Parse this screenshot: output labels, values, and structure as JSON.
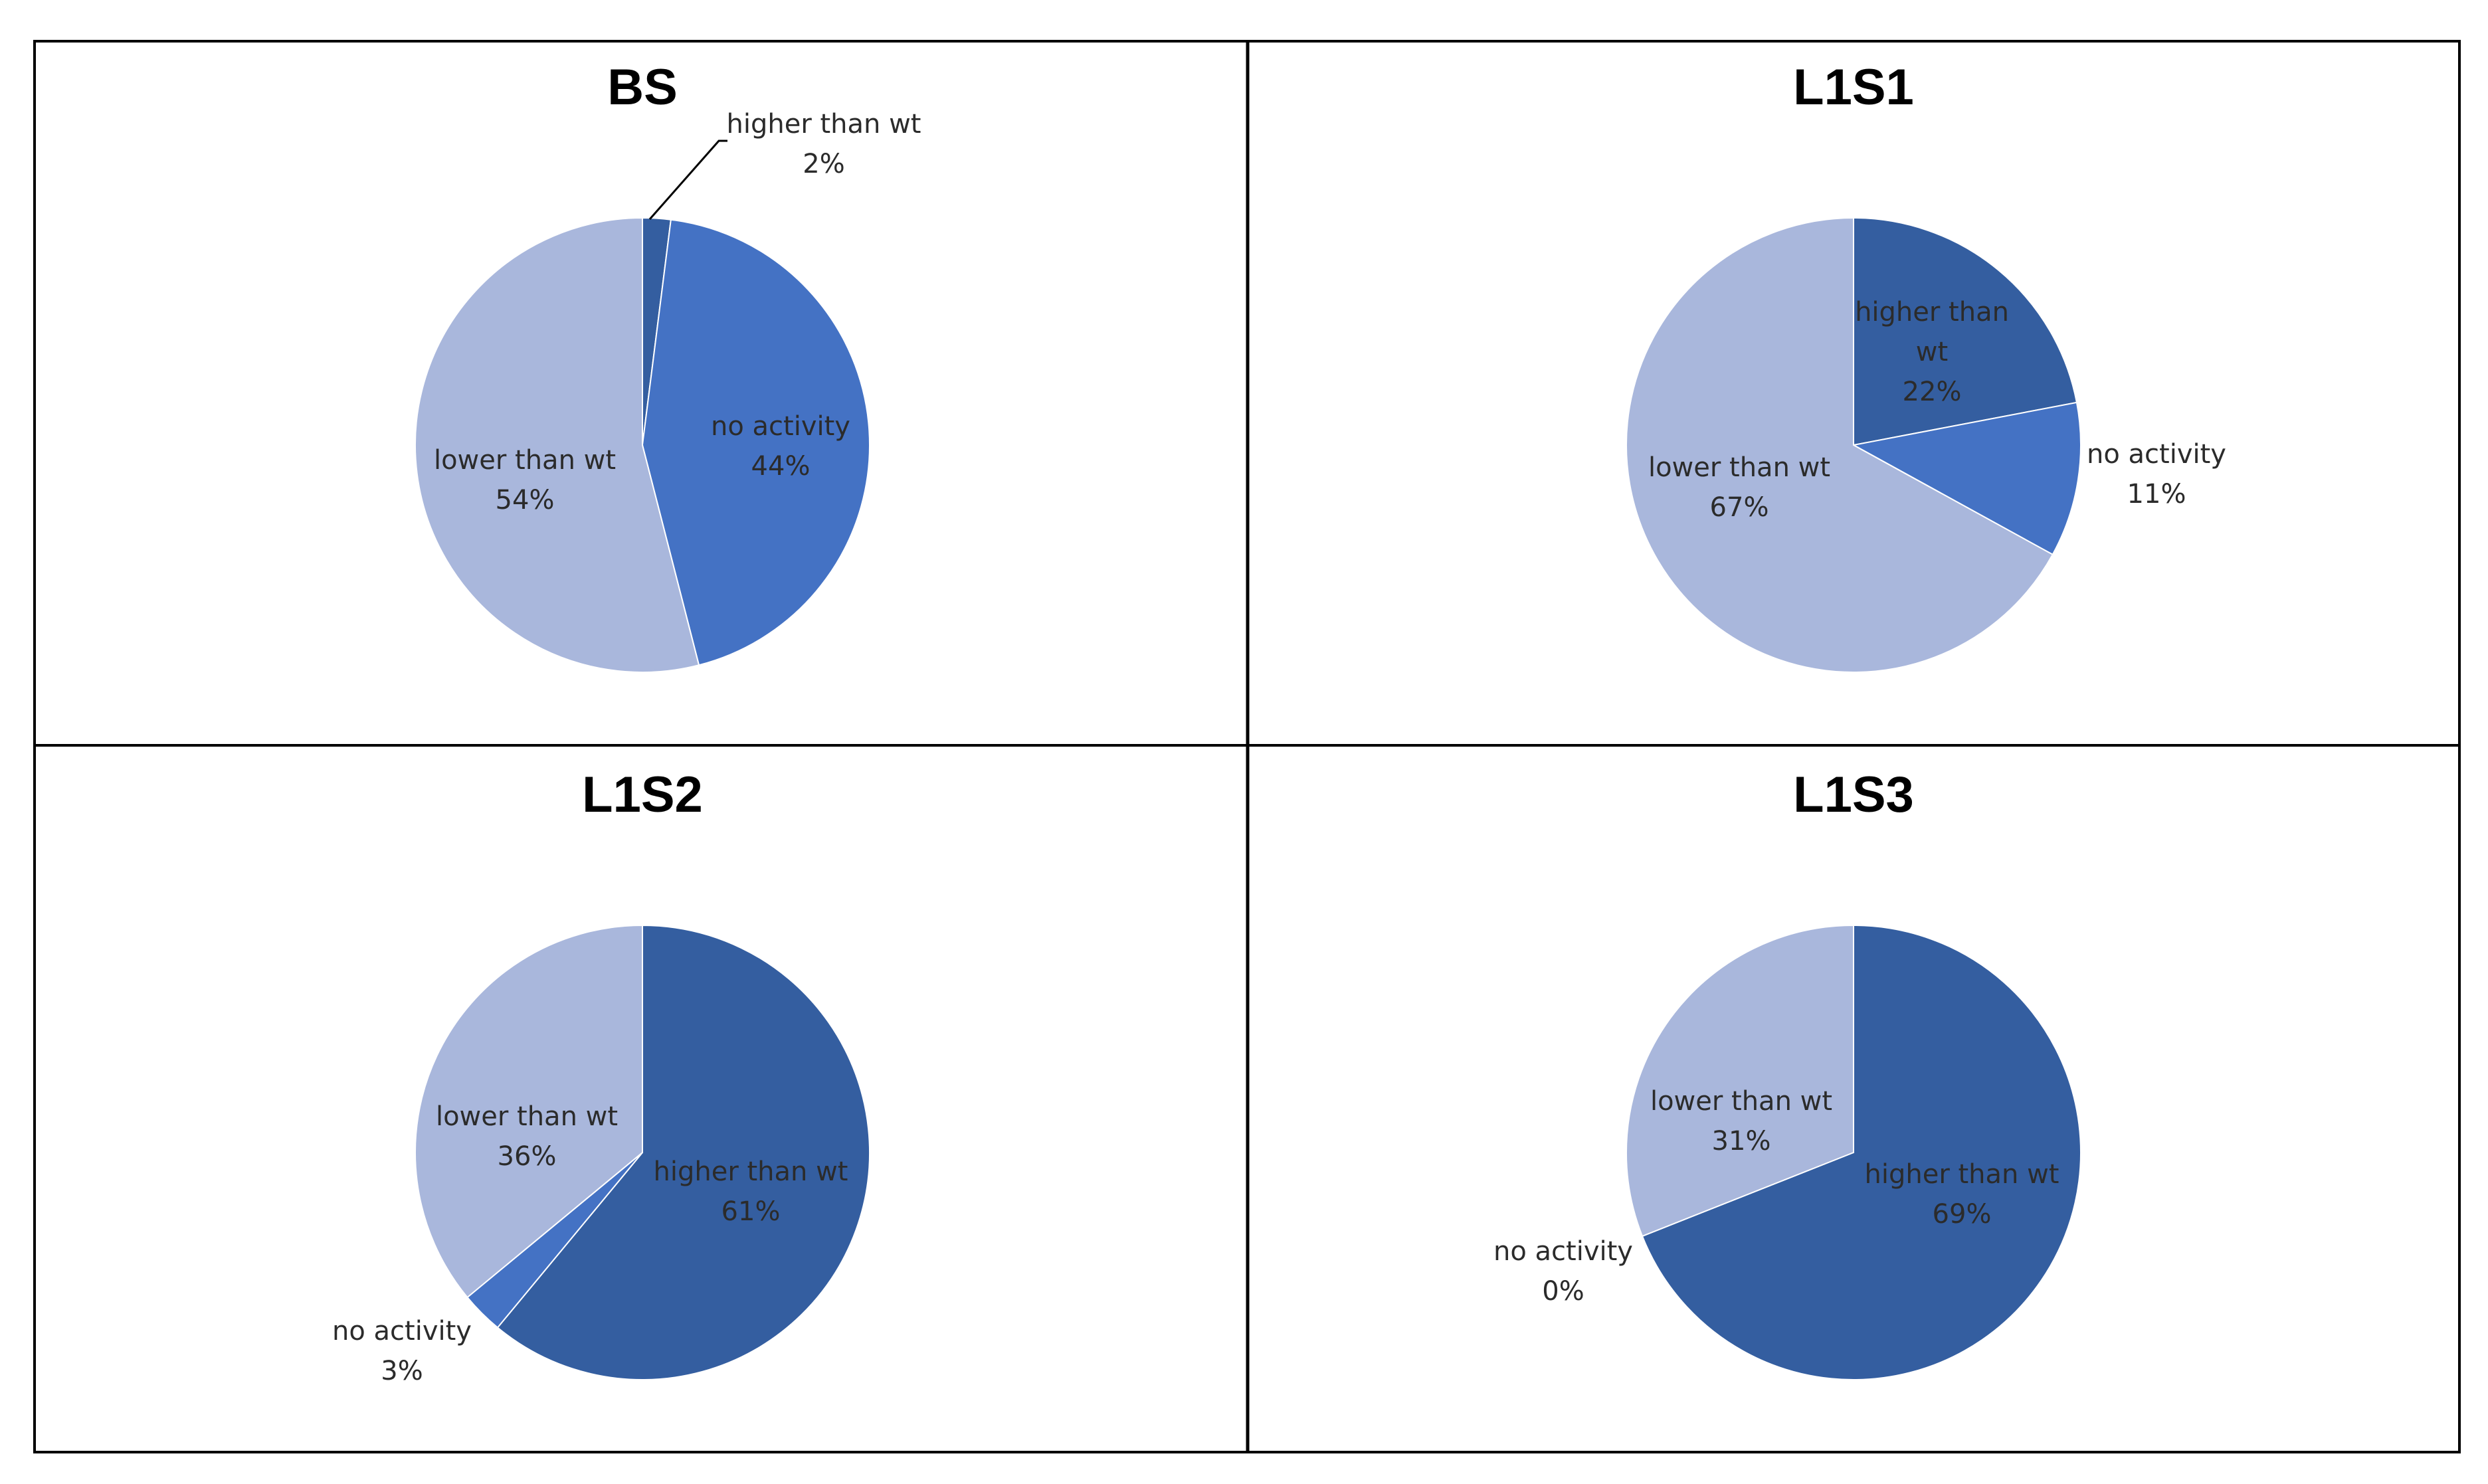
{
  "colors": {
    "higher": "#345ea0",
    "noactivity": "#4472c4",
    "lower": "#a9b7dc",
    "border": "#000000"
  },
  "chart_data": [
    {
      "type": "pie",
      "title": "BS",
      "slices": [
        {
          "name": "higher than wt",
          "value": 2,
          "label_text": "higher than wt",
          "value_text": "2%"
        },
        {
          "name": "no activity",
          "value": 44,
          "label_text": "no activity",
          "value_text": "44%"
        },
        {
          "name": "lower than wt",
          "value": 54,
          "label_text": "lower than wt",
          "value_text": "54%"
        }
      ]
    },
    {
      "type": "pie",
      "title": "L1S1",
      "slices": [
        {
          "name": "higher than wt",
          "value": 22,
          "label_text": "higher than wt",
          "value_text": "22%"
        },
        {
          "name": "no activity",
          "value": 11,
          "label_text": "no activity",
          "value_text": "11%"
        },
        {
          "name": "lower than wt",
          "value": 67,
          "label_text": "lower than wt",
          "value_text": "67%"
        }
      ]
    },
    {
      "type": "pie",
      "title": "L1S2",
      "slices": [
        {
          "name": "higher than wt",
          "value": 61,
          "label_text": "higher than wt",
          "value_text": "61%"
        },
        {
          "name": "no activity",
          "value": 3,
          "label_text": "no activity",
          "value_text": "3%"
        },
        {
          "name": "lower than wt",
          "value": 36,
          "label_text": "lower than wt",
          "value_text": "36%"
        }
      ]
    },
    {
      "type": "pie",
      "title": "L1S3",
      "slices": [
        {
          "name": "higher than wt",
          "value": 69,
          "label_text": "higher than wt",
          "value_text": "69%"
        },
        {
          "name": "no activity",
          "value": 0,
          "label_text": "no activity",
          "value_text": "0%"
        },
        {
          "name": "lower than wt",
          "value": 31,
          "label_text": "lower than wt",
          "value_text": "31%"
        }
      ]
    }
  ]
}
